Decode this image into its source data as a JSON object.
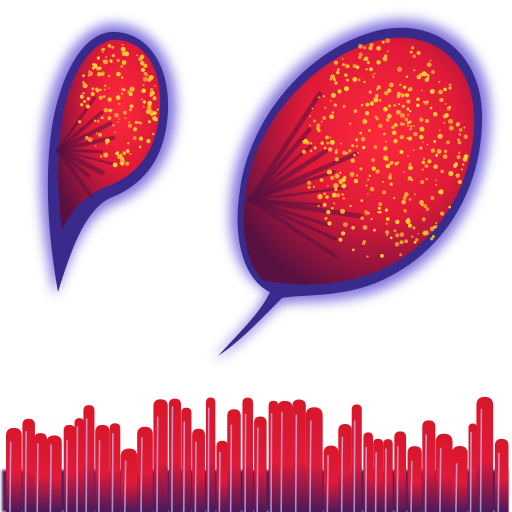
{
  "scene": {
    "background_color": "#ffffff",
    "objects": [
      {
        "name": "small-petal",
        "kind": "glowing-petal"
      },
      {
        "name": "large-petal",
        "kind": "glowing-petal"
      },
      {
        "name": "grass-fringe",
        "kind": "red-blade-fringe"
      }
    ]
  },
  "palette": {
    "glow_outer": "#6a5bd6",
    "glow_edge": "#3a2a8c",
    "core_bright": "#ff2a3a",
    "core_mid": "#e01a38",
    "core_dark": "#5a1040",
    "speckle": "#ffd633",
    "blade_red": "#d8172a",
    "blade_dark": "#4a1a5a",
    "blade_light": "#c9b8ee"
  }
}
